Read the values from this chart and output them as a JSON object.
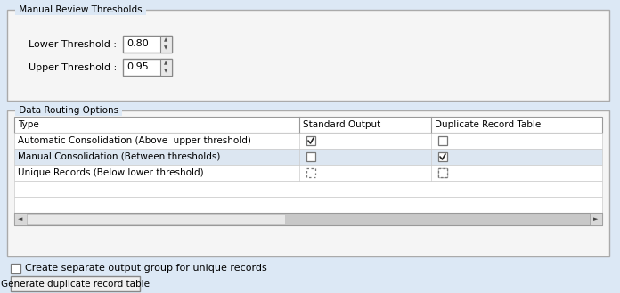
{
  "bg_color": "#dce8f5",
  "panel_bg": "#ffffff",
  "title_threshold": "Manual Review Thresholds",
  "lower_label": "Lower Threshold :",
  "upper_label": "Upper Threshold :",
  "lower_value": "0.80",
  "upper_value": "0.95",
  "title_routing": "Data Routing Options",
  "col_headers": [
    "Type",
    "Standard Output",
    "Duplicate Record Table"
  ],
  "rows": [
    [
      "Automatic Consolidation (Above  upper threshold)",
      true,
      false
    ],
    [
      "Manual Consolidation (Between thresholds)",
      false,
      true
    ],
    [
      "Unique Records (Below lower threshold)",
      false,
      false
    ]
  ],
  "empty_rows": 2,
  "checkbox_label": "Create separate output group for unique records",
  "button_label": "Generate duplicate record table",
  "text_color": "#000000",
  "border_color": "#aaaaaa",
  "row_color_1": "#ffffff",
  "row_color_2": "#dce6f1",
  "scrollbar_color": "#c8c8c8",
  "scrollbar_thumb": "#e8e8e8",
  "fig_w": 6.96,
  "fig_h": 3.29,
  "dpi": 100
}
